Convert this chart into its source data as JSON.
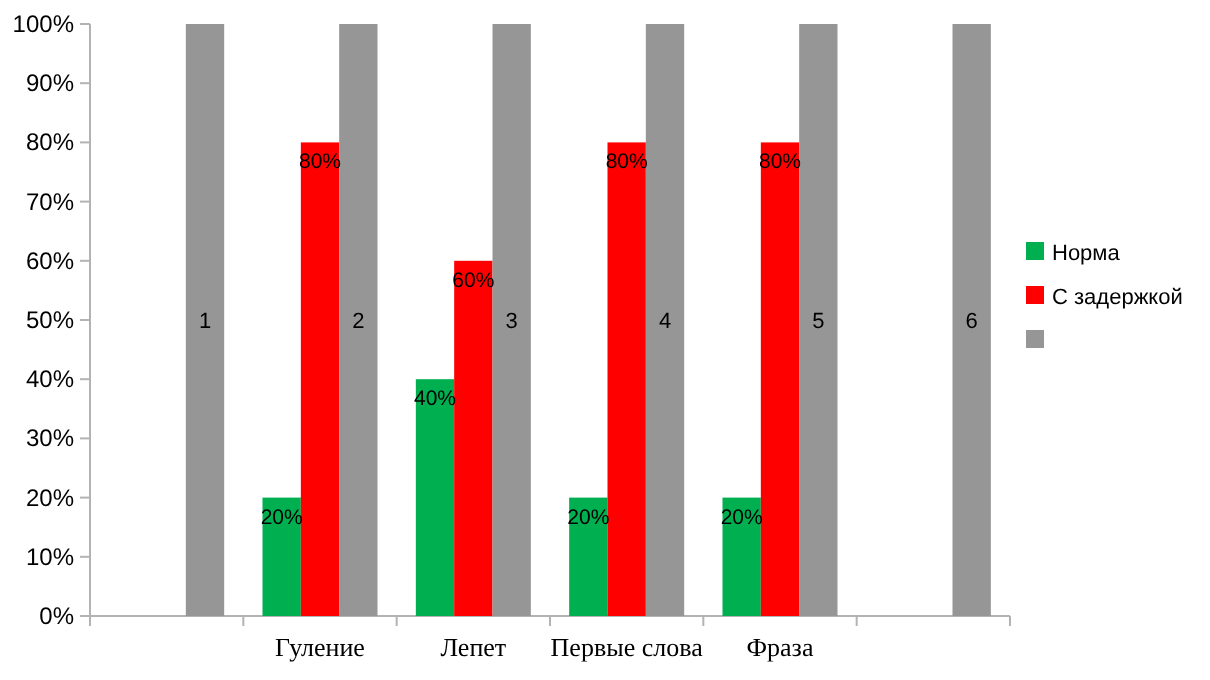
{
  "chart_data": {
    "type": "bar",
    "categories": [
      null,
      "Гуление",
      "Лепет",
      "Первые слова",
      "Фраза",
      null
    ],
    "series": [
      {
        "name": "Норма",
        "color": "#00b050",
        "values": [
          null,
          20,
          40,
          20,
          20,
          null
        ],
        "value_labels": [
          null,
          "20%",
          "40%",
          "20%",
          "20%",
          null
        ]
      },
      {
        "name": "С задержкой",
        "color": "#ff0000",
        "values": [
          null,
          80,
          60,
          80,
          80,
          null
        ],
        "value_labels": [
          null,
          "80%",
          "60%",
          "80%",
          "80%",
          null
        ]
      },
      {
        "color": "#969696",
        "values": [
          100,
          100,
          100,
          100,
          100,
          100
        ]
      }
    ],
    "annotations": [
      "1",
      "2",
      "3",
      "4",
      "5",
      "6"
    ],
    "ylim": [
      0,
      100
    ],
    "yticks": [
      {
        "value": 0,
        "label": "0%"
      },
      {
        "value": 10,
        "label": "10%"
      },
      {
        "value": 20,
        "label": "20%"
      },
      {
        "value": 30,
        "label": "30%"
      },
      {
        "value": 40,
        "label": "40%"
      },
      {
        "value": 50,
        "label": "50%"
      },
      {
        "value": 60,
        "label": "60%"
      },
      {
        "value": 70,
        "label": "70%"
      },
      {
        "value": 80,
        "label": "80%"
      },
      {
        "value": 90,
        "label": "90%"
      },
      {
        "value": 100,
        "label": "100%"
      }
    ],
    "legend": "right"
  }
}
